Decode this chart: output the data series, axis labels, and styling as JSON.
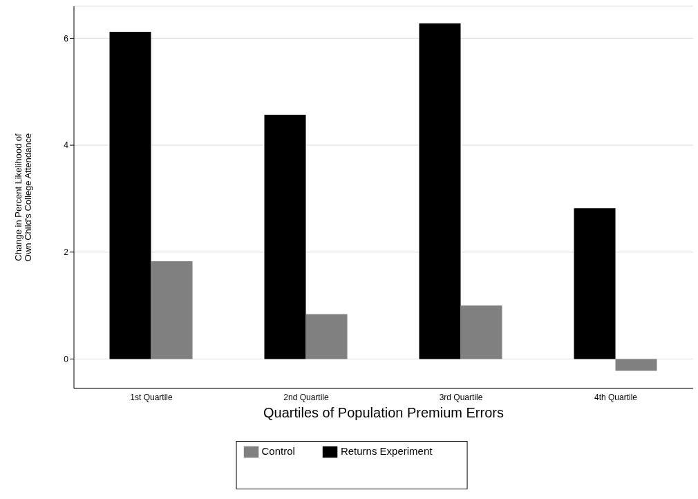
{
  "chart_data": {
    "type": "bar",
    "xlabel": "Quartiles of Population Premium Errors",
    "ylabel": "Change in Percent Likelihood of\nOwn Child's College Attendance",
    "categories": [
      "1st Quartile",
      "2nd Quartile",
      "3rd Quartile",
      "4th Quartile"
    ],
    "series": [
      {
        "name": "Returns Experiment",
        "color": "#000000",
        "values": [
          6.12,
          4.57,
          6.28,
          2.82
        ]
      },
      {
        "name": "Control",
        "color": "#808080",
        "values": [
          1.83,
          0.84,
          1.0,
          -0.22
        ]
      }
    ],
    "ylim": [
      -0.55,
      6.6
    ],
    "yticks": [
      0,
      2,
      4,
      6
    ],
    "grid": "y",
    "legend": "bottom"
  }
}
